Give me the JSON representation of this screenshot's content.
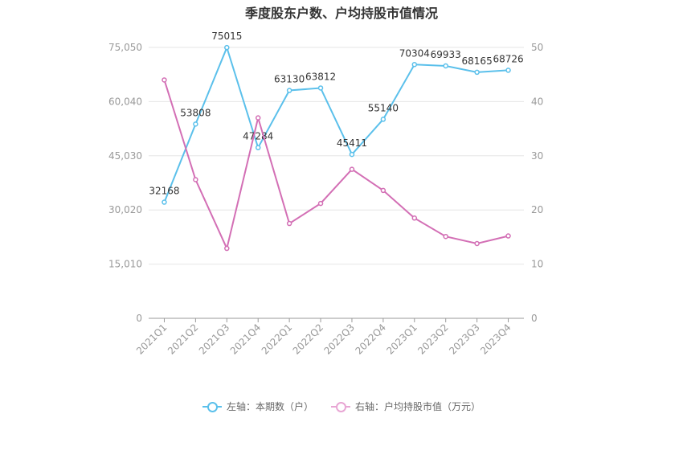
{
  "chart_data": {
    "type": "line",
    "title": "季度股东户数、户均持股市值情况",
    "categories": [
      "2021Q1",
      "2021Q2",
      "2021Q3",
      "2021Q4",
      "2022Q1",
      "2022Q2",
      "2022Q3",
      "2022Q4",
      "2023Q1",
      "2023Q2",
      "2023Q3",
      "2023Q4"
    ],
    "left_axis": {
      "ylim": [
        0,
        75050
      ],
      "ticks": [
        "0",
        "15,010",
        "30,020",
        "45,030",
        "60,040",
        "75,050"
      ]
    },
    "right_axis": {
      "ylim": [
        0,
        50
      ],
      "ticks": [
        "0",
        "10",
        "20",
        "30",
        "40",
        "50"
      ]
    },
    "series": [
      {
        "name": "左轴：本期数（户）",
        "axis": "left",
        "color": "#5bc0eb",
        "values": [
          32168,
          53808,
          75015,
          47284,
          63130,
          63812,
          45411,
          55140,
          70304,
          69933,
          68165,
          68726
        ],
        "labels": [
          "32168",
          "53808",
          "75015",
          "47284",
          "63130",
          "63812",
          "45411",
          "55140",
          "70304",
          "69933",
          "68165",
          "68726"
        ]
      },
      {
        "name": "右轴：户均持股市值（万元）",
        "axis": "right",
        "color": "#d36fb5",
        "values": [
          44.0,
          25.6,
          12.9,
          37.0,
          17.5,
          21.2,
          27.5,
          23.6,
          18.5,
          15.1,
          13.8,
          15.2
        ]
      }
    ],
    "grid": true,
    "legend_position": "bottom"
  }
}
